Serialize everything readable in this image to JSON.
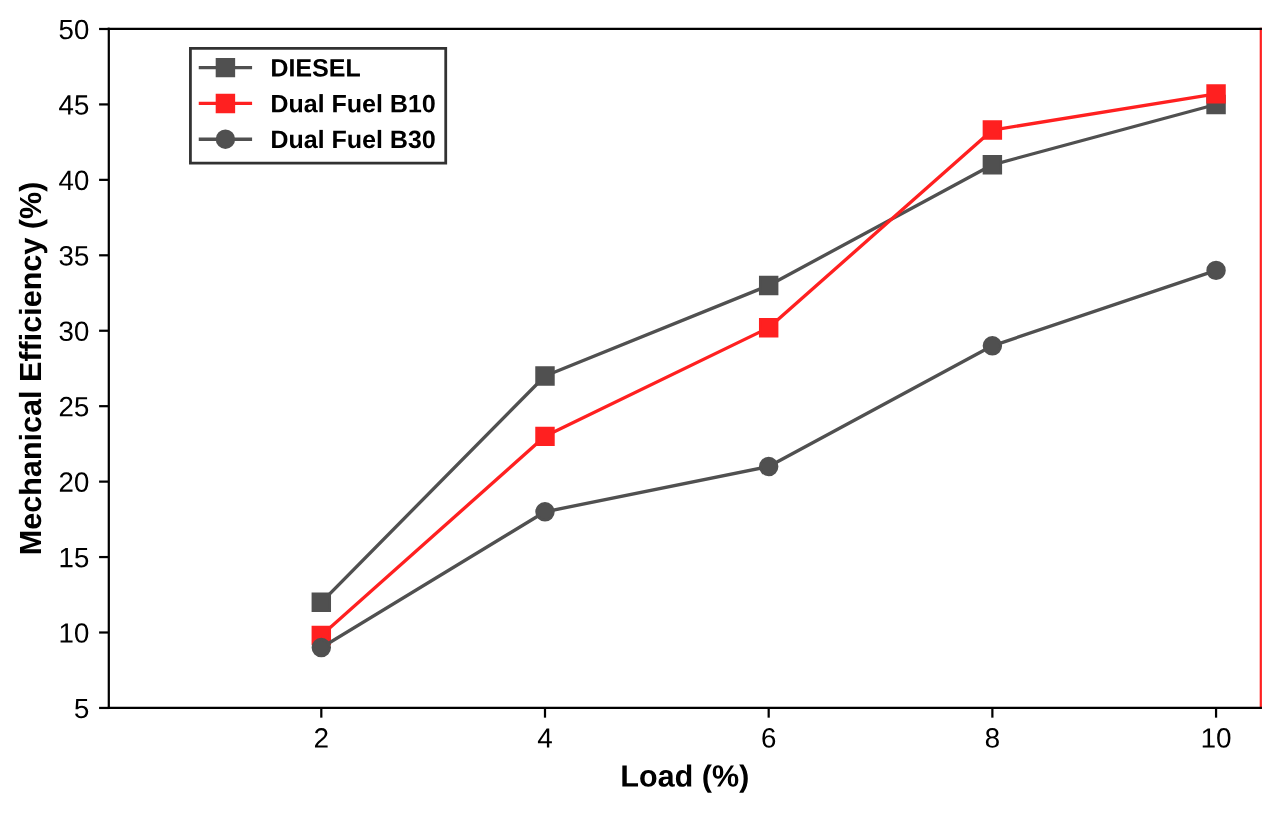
{
  "chart_data": {
    "type": "line",
    "xlabel": "Load (%)",
    "ylabel": "Mechanical Efficiency (%)",
    "x": [
      2,
      4,
      6,
      8,
      10
    ],
    "series": [
      {
        "name": "DIESEL",
        "color": "#505050",
        "marker": "square",
        "values": [
          12,
          27,
          33,
          41,
          45
        ]
      },
      {
        "name": "Dual Fuel B10",
        "color": "#ff2020",
        "marker": "square",
        "values": [
          9.8,
          23,
          30.2,
          43.3,
          45.7
        ]
      },
      {
        "name": "Dual Fuel B30",
        "color": "#505050",
        "marker": "circle",
        "values": [
          9,
          18,
          21,
          29,
          34
        ]
      }
    ],
    "xlim": [
      0.1,
      10.4
    ],
    "xticks": [
      2,
      4,
      6,
      8,
      10
    ],
    "ylim": [
      5,
      50
    ],
    "yticks": [
      5,
      10,
      15,
      20,
      25,
      30,
      35,
      40,
      45,
      50
    ],
    "grid": false,
    "legend": "top left",
    "line_style": "solid"
  }
}
